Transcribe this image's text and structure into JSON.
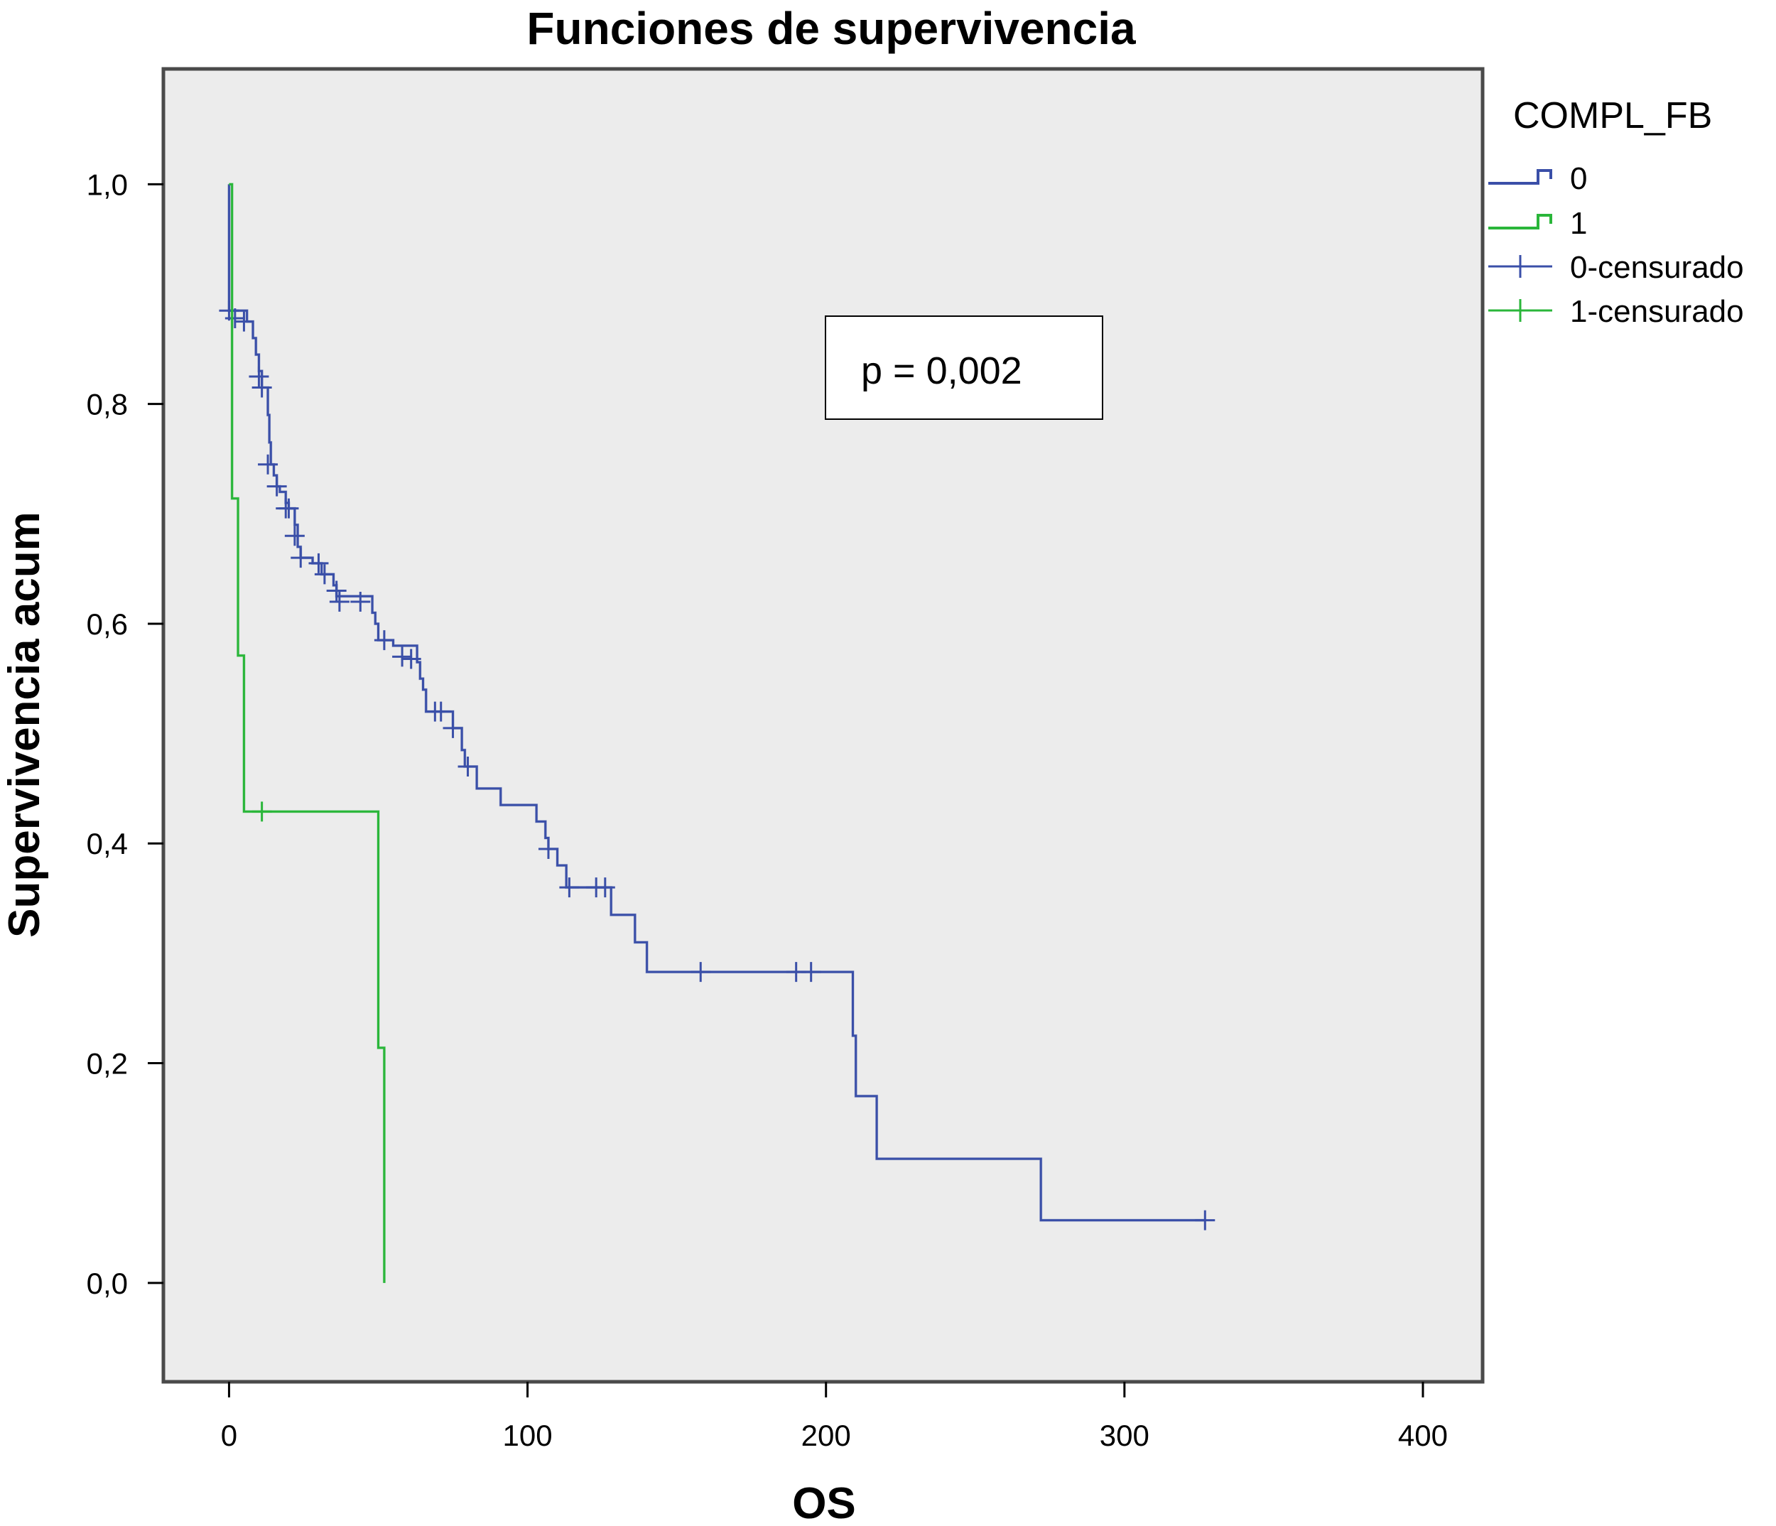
{
  "chart_data": {
    "type": "line",
    "title": "Funciones de supervivencia",
    "xlabel": "OS",
    "ylabel": "Supervivencia acum",
    "xlim": [
      -22,
      420
    ],
    "ylim": [
      -0.09,
      1.105
    ],
    "xticks": [
      0,
      100,
      200,
      300,
      400
    ],
    "yticks": [
      0.0,
      0.2,
      0.4,
      0.6,
      0.8,
      1.0
    ],
    "xtick_labels": [
      "0",
      "100",
      "200",
      "300",
      "400"
    ],
    "ytick_labels": [
      "0,0",
      "0,2",
      "0,4",
      "0,6",
      "0,8",
      "1,0"
    ],
    "grid": false,
    "legend_title": "COMPL_FB",
    "legend_position": "right",
    "legend": [
      {
        "label": "0",
        "kind": "step",
        "color": "#3a4fa8"
      },
      {
        "label": "1",
        "kind": "step",
        "color": "#2ab63a"
      },
      {
        "label": "0-censurado",
        "kind": "censor",
        "color": "#3a4fa8"
      },
      {
        "label": "1-censurado",
        "kind": "censor",
        "color": "#2ab63a"
      }
    ],
    "annotation": "p = 0,002",
    "series": [
      {
        "name": "0",
        "color": "#3a4fa8",
        "steps": [
          [
            0,
            1.0
          ],
          [
            0,
            0.885
          ],
          [
            6,
            0.875
          ],
          [
            8,
            0.86
          ],
          [
            9,
            0.845
          ],
          [
            10,
            0.83
          ],
          [
            11,
            0.815
          ],
          [
            13,
            0.79
          ],
          [
            13.5,
            0.765
          ],
          [
            14,
            0.745
          ],
          [
            15,
            0.735
          ],
          [
            16,
            0.725
          ],
          [
            17,
            0.72
          ],
          [
            19,
            0.71
          ],
          [
            20,
            0.705
          ],
          [
            22,
            0.69
          ],
          [
            23,
            0.67
          ],
          [
            24,
            0.66
          ],
          [
            28,
            0.655
          ],
          [
            31,
            0.645
          ],
          [
            35,
            0.635
          ],
          [
            36,
            0.625
          ],
          [
            48,
            0.61
          ],
          [
            49,
            0.6
          ],
          [
            50,
            0.585
          ],
          [
            55,
            0.58
          ],
          [
            63,
            0.565
          ],
          [
            64,
            0.55
          ],
          [
            65,
            0.54
          ],
          [
            66,
            0.52
          ],
          [
            75,
            0.505
          ],
          [
            78,
            0.485
          ],
          [
            79,
            0.47
          ],
          [
            83,
            0.45
          ],
          [
            91,
            0.435
          ],
          [
            103,
            0.42
          ],
          [
            106,
            0.405
          ],
          [
            107,
            0.395
          ],
          [
            110,
            0.38
          ],
          [
            113,
            0.36
          ],
          [
            128,
            0.335
          ],
          [
            136,
            0.31
          ],
          [
            140,
            0.283
          ],
          [
            209,
            0.283
          ],
          [
            209,
            0.225
          ],
          [
            210,
            0.17
          ],
          [
            217,
            0.113
          ],
          [
            272,
            0.057
          ],
          [
            327,
            0.057
          ]
        ],
        "censored": [
          [
            0,
            0.885
          ],
          [
            2,
            0.878
          ],
          [
            5,
            0.875
          ],
          [
            10,
            0.825
          ],
          [
            11,
            0.815
          ],
          [
            13,
            0.745
          ],
          [
            16,
            0.725
          ],
          [
            19,
            0.705
          ],
          [
            20,
            0.705
          ],
          [
            22,
            0.68
          ],
          [
            24,
            0.66
          ],
          [
            30,
            0.655
          ],
          [
            32,
            0.645
          ],
          [
            36,
            0.63
          ],
          [
            37,
            0.62
          ],
          [
            44,
            0.62
          ],
          [
            52,
            0.585
          ],
          [
            58,
            0.57
          ],
          [
            61,
            0.568
          ],
          [
            69,
            0.52
          ],
          [
            71,
            0.52
          ],
          [
            75,
            0.505
          ],
          [
            80,
            0.47
          ],
          [
            107,
            0.395
          ],
          [
            114,
            0.36
          ],
          [
            123,
            0.36
          ],
          [
            126,
            0.36
          ],
          [
            158,
            0.283
          ],
          [
            190,
            0.283
          ],
          [
            195,
            0.283
          ],
          [
            327,
            0.057
          ]
        ]
      },
      {
        "name": "1",
        "color": "#2ab63a",
        "steps": [
          [
            0,
            1.0
          ],
          [
            1,
            0.714
          ],
          [
            3,
            0.571
          ],
          [
            5,
            0.429
          ],
          [
            50,
            0.214
          ],
          [
            52,
            0.0
          ]
        ],
        "censored": [
          [
            11,
            0.429
          ]
        ]
      }
    ]
  }
}
